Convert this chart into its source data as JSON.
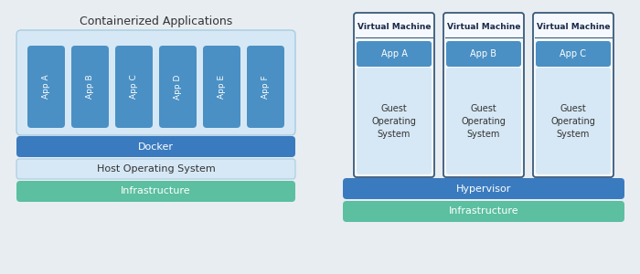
{
  "bg_color": "#e8edf2",
  "title_left": "Containerized Applications",
  "title_color": "#333333",
  "app_labels_left": [
    "App A",
    "App B",
    "App C",
    "App D",
    "App E",
    "App F"
  ],
  "docker_label": "Docker",
  "host_os_label": "Host Operating System",
  "infra_label": "Infrastructure",
  "vm_title": "Virtual Machine",
  "vm_apps": [
    "App A",
    "App B",
    "App C"
  ],
  "guest_os_label": "Guest\nOperating\nSystem",
  "hypervisor_label": "Hypervisor",
  "color_blue_dark": "#3a7bbf",
  "color_blue_mid": "#4a90c4",
  "color_blue_light": "#d6e8f5",
  "color_green": "#5bbfa0",
  "color_vm_bg": "#f5f9fd",
  "color_vm_border": "#3a5a7a",
  "color_outline_light": "#a8cce0"
}
